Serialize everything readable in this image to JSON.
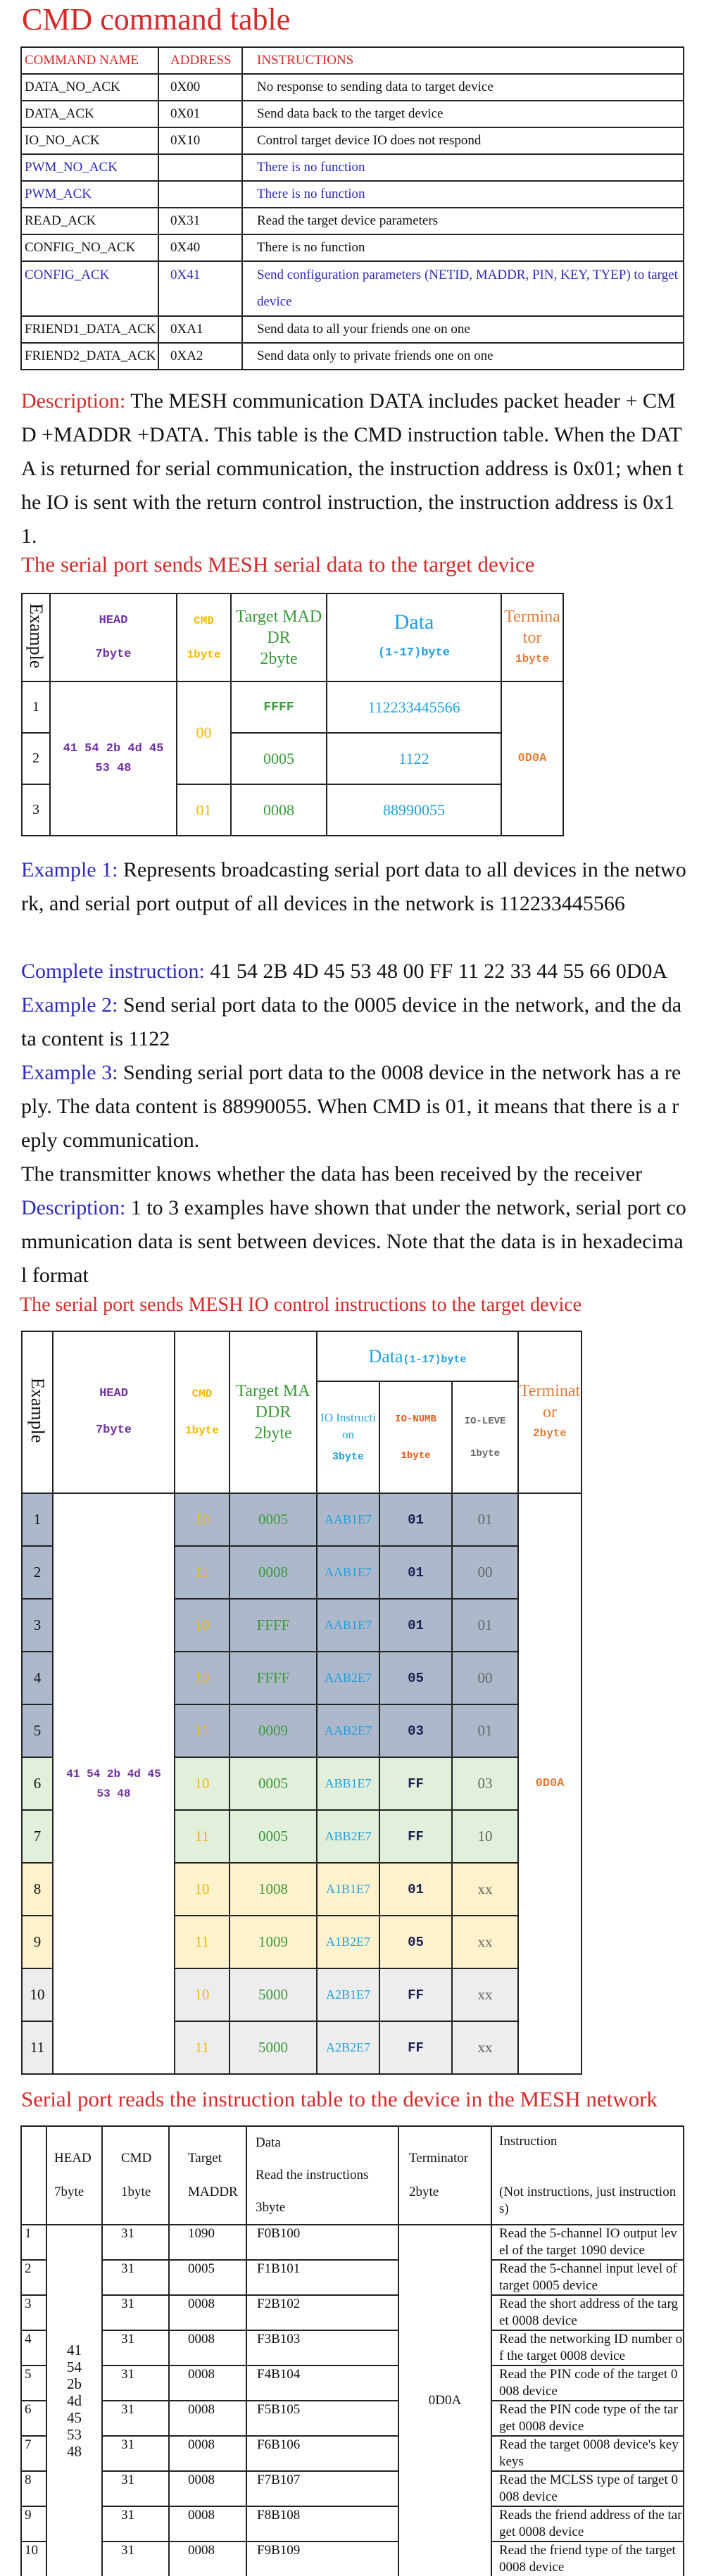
{
  "colors": {
    "heading_red": "#d42a2a",
    "label_blue": "#2b2bb8",
    "head_purple": "#7030a0",
    "cmd_yellow": "#f5b800",
    "target_green": "#3a9a3a",
    "data_blue": "#1ea0e0",
    "terminator_orange": "#e07b39",
    "row_group_blue": "#adb9ca",
    "row_group_green": "#e2efda",
    "row_group_yellow": "#fff2cc",
    "row_group_gray": "#ededed"
  },
  "cmd_table": {
    "title": "CMD command table",
    "headers": [
      "COMMAND NAME",
      "ADDRESS",
      "INSTRUCTIONS"
    ],
    "rows": [
      {
        "name": "DATA_NO_ACK",
        "address": "0X00",
        "instruction": "No response to sending data to target device",
        "emphasis": false
      },
      {
        "name": "DATA_ACK",
        "address": "0X01",
        "instruction": "Send data back to the target device",
        "emphasis": false
      },
      {
        "name": "IO_NO_ACK",
        "address": "0X10",
        "instruction": "Control target device IO does not respond",
        "emphasis": false
      },
      {
        "name": "PWM_NO_ACK",
        "address": "",
        "instruction": "There is no function",
        "emphasis": true
      },
      {
        "name": "PWM_ACK",
        "address": "",
        "instruction": "There is no function",
        "emphasis": true
      },
      {
        "name": "READ_ACK",
        "address": "0X31",
        "instruction": "Read the target device parameters",
        "emphasis": false
      },
      {
        "name": "CONFIG_NO_ACK",
        "address": "0X40",
        "instruction": "There is no function",
        "emphasis": false
      },
      {
        "name": "CONFIG_ACK",
        "address": "0X41",
        "instruction": "Send configuration parameters (NETID, MADDR, PIN, KEY, TYEP) to target device",
        "emphasis": true
      },
      {
        "name": "FRIEND1_DATA_ACK",
        "address": "0XA1",
        "instruction": "Send data to all your friends one on one",
        "emphasis": false
      },
      {
        "name": "FRIEND2_DATA_ACK",
        "address": "0XA2",
        "instruction": "Send data only to private friends one on one",
        "emphasis": false
      }
    ]
  },
  "description1": {
    "label": "Description:",
    "text": " The MESH communication DATA includes packet header + CMD +MADDR +DATA. This table is the CMD instruction table. When the DATA is returned for serial communication, the instruction address is 0x01; when the IO is sent with the return control instruction, the instruction address is 0x11."
  },
  "serial_table": {
    "title": "The serial port sends MESH serial data to the target device",
    "headers": {
      "example": "Example",
      "head": "HEAD",
      "head_size": "7byte",
      "cmd": "CMD",
      "cmd_size": "1byte",
      "target": "Target MADDR",
      "target_size": "2byte",
      "data": "Data",
      "data_size": "(1-17)byte",
      "terminator": "Terminator",
      "terminator_size": "1byte"
    },
    "head_value": "41 54 2b 4d 45 53 48",
    "terminator_value": "0D0A",
    "cmd_groups": [
      "00",
      "01"
    ],
    "rows": [
      {
        "example": "1",
        "maddr": "FFFF",
        "data": "112233445566"
      },
      {
        "example": "2",
        "maddr": "0005",
        "data": "1122"
      },
      {
        "example": "3",
        "maddr": "0008",
        "data": "88990055"
      }
    ]
  },
  "examples": [
    {
      "label": "Example 1:",
      "text": " Represents broadcasting serial port data to all devices in the network, and serial port output of all devices in the network is 112233445566"
    },
    {
      "label": "Complete instruction:",
      "text": " 41 54 2B 4D 45 53 48 00 FF 11 22 33 44 55 66 0D0A"
    },
    {
      "label": "Example 2:",
      "text": " Send serial port data to the 0005 device in the network, and the data content is 1122"
    },
    {
      "label": "Example 3:",
      "text": " Sending serial port data to the 0008 device in the network has a reply. The data content is 88990055. When CMD is 01, it means that there is a reply communication."
    },
    {
      "label": "",
      "text": "The transmitter knows whether the data has been received by the receiver"
    },
    {
      "label": "Description:",
      "text": " 1 to 3 examples have shown that under the network, serial port communication data is sent between devices. Note that the data is in hexadecimal format"
    }
  ],
  "io_table": {
    "title": "The serial port sends MESH IO control instructions to the target device",
    "headers": {
      "example": "Example",
      "head": "HEAD",
      "head_size": "7byte",
      "cmd": "CMD",
      "cmd_size": "1byte",
      "target": "Target MADDR",
      "target_size": "2byte",
      "data": "Data",
      "data_size": "(1-17)byte",
      "io_instruction": "IO Instruction",
      "io_instruction_size": "3byte",
      "io_numb": "IO-NUMB",
      "io_numb_size": "1byte",
      "io_level": "IO-LEVE",
      "io_level_size": "1byte",
      "terminator": "Terminator",
      "terminator_size": "2byte"
    },
    "head_value": "41 54 2b 4d 45 53 48",
    "terminator_value": "0D0A",
    "rows": [
      {
        "example": "1",
        "cmd": "10",
        "maddr": "0005",
        "io_instruction": "AAB1E7",
        "io_numb": "01",
        "io_level": "01",
        "group": "blue"
      },
      {
        "example": "2",
        "cmd": "11",
        "maddr": "0008",
        "io_instruction": "AAB1E7",
        "io_numb": "01",
        "io_level": "00",
        "group": "blue"
      },
      {
        "example": "3",
        "cmd": "10",
        "maddr": "FFFF",
        "io_instruction": "AAB1E7",
        "io_numb": "01",
        "io_level": "01",
        "group": "blue"
      },
      {
        "example": "4",
        "cmd": "10",
        "maddr": "FFFF",
        "io_instruction": "AAB2E7",
        "io_numb": "05",
        "io_level": "00",
        "group": "blue"
      },
      {
        "example": "5",
        "cmd": "11",
        "maddr": "0009",
        "io_instruction": "AAB2E7",
        "io_numb": "03",
        "io_level": "01",
        "group": "blue"
      },
      {
        "example": "6",
        "cmd": "10",
        "maddr": "0005",
        "io_instruction": "ABB1E7",
        "io_numb": "FF",
        "io_level": "03",
        "group": "green"
      },
      {
        "example": "7",
        "cmd": "11",
        "maddr": "0005",
        "io_instruction": "ABB2E7",
        "io_numb": "FF",
        "io_level": "10",
        "group": "green"
      },
      {
        "example": "8",
        "cmd": "10",
        "maddr": "1008",
        "io_instruction": "A1B1E7",
        "io_numb": "01",
        "io_level": "xx",
        "group": "yellow"
      },
      {
        "example": "9",
        "cmd": "11",
        "maddr": "1009",
        "io_instruction": "A1B2E7",
        "io_numb": "05",
        "io_level": "xx",
        "group": "yellow"
      },
      {
        "example": "10",
        "cmd": "10",
        "maddr": "5000",
        "io_instruction": "A2B1E7",
        "io_numb": "FF",
        "io_level": "xx",
        "group": "gray"
      },
      {
        "example": "11",
        "cmd": "11",
        "maddr": "5000",
        "io_instruction": "A2B2E7",
        "io_numb": "FF",
        "io_level": "xx",
        "group": "gray"
      }
    ]
  },
  "read_table": {
    "title": "Serial port reads the instruction table to the device in the MESH network",
    "headers": {
      "head": "HEAD",
      "head_size": "7byte",
      "cmd": "CMD",
      "cmd_size": "1byte",
      "target": "Target",
      "target_size": "MADDR",
      "data": "Data",
      "data_sub": "Read the instructions",
      "data_size": "3byte",
      "terminator": "Terminator",
      "terminator_size": "2byte",
      "instruction": "Instruction",
      "instruction_note": "(Not instructions, just instructions)"
    },
    "head_bytes": [
      "41",
      "54",
      "2b",
      "4d",
      "45",
      "53",
      "48"
    ],
    "terminator_value": "0D0A",
    "rows": [
      {
        "num": "1",
        "cmd": "31",
        "maddr": "1090",
        "data": "F0B100",
        "instruction": "Read the 5-channel IO output level of the target 1090 device"
      },
      {
        "num": "2",
        "cmd": "31",
        "maddr": "0005",
        "data": "F1B101",
        "instruction": "Read the 5-channel input level of target 0005 device"
      },
      {
        "num": "3",
        "cmd": "31",
        "maddr": "0008",
        "data": "F2B102",
        "instruction": "Read the short address of the target 0008 device"
      },
      {
        "num": "4",
        "cmd": "31",
        "maddr": "0008",
        "data": "F3B103",
        "instruction": "Read the networking ID number of the target 0008 device"
      },
      {
        "num": "5",
        "cmd": "31",
        "maddr": "0008",
        "data": "F4B104",
        "instruction": "Read the PIN code of the target 0008 device"
      },
      {
        "num": "6",
        "cmd": "31",
        "maddr": "0008",
        "data": "F5B105",
        "instruction": "Read the PIN code type of the target 0008 device"
      },
      {
        "num": "7",
        "cmd": "31",
        "maddr": "0008",
        "data": "F6B106",
        "instruction": "Read the target 0008 device's key keys"
      },
      {
        "num": "8",
        "cmd": "31",
        "maddr": "0008",
        "data": "F7B107",
        "instruction": "Read the MCLSS type of target 0008 device"
      },
      {
        "num": "9",
        "cmd": "31",
        "maddr": "0008",
        "data": "F8B108",
        "instruction": "Reads the friend address of the target 0008 device"
      },
      {
        "num": "10",
        "cmd": "31",
        "maddr": "0008",
        "data": "F9B109",
        "instruction": "Read the friend type of the target 0008 device"
      }
    ]
  }
}
